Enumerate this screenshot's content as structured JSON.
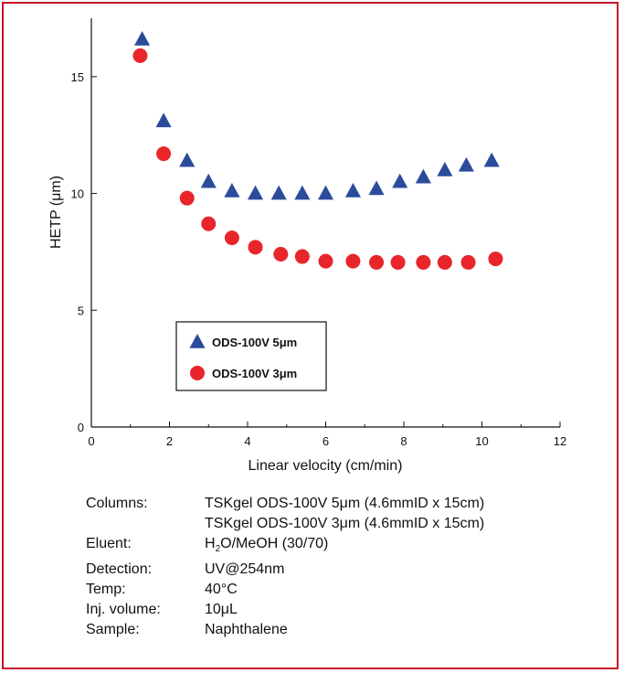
{
  "chart_data": {
    "type": "scatter",
    "xlabel": "Linear velocity (cm/min)",
    "ylabel": "HETP (μm)",
    "xlim": [
      0,
      12
    ],
    "ylim": [
      0,
      17.5
    ],
    "x_ticks": [
      0,
      2,
      4,
      6,
      8,
      10,
      12
    ],
    "y_ticks": [
      0,
      5,
      10,
      15
    ],
    "grid": false,
    "legend_position": "bottom-left",
    "series": [
      {
        "name": "ODS-100V 5μm",
        "marker": "triangle",
        "color": "#2b4c9b",
        "x": [
          1.3,
          1.85,
          2.45,
          3.0,
          3.6,
          4.2,
          4.8,
          5.4,
          6.0,
          6.7,
          7.3,
          7.9,
          8.5,
          9.05,
          9.6,
          10.25
        ],
        "y": [
          16.6,
          13.1,
          11.4,
          10.5,
          10.1,
          10.0,
          10.0,
          10.0,
          10.0,
          10.1,
          10.2,
          10.5,
          10.7,
          11.0,
          11.2,
          11.4
        ]
      },
      {
        "name": "ODS-100V 3μm",
        "marker": "circle",
        "color": "#e8252b",
        "x": [
          1.25,
          1.85,
          2.45,
          3.0,
          3.6,
          4.2,
          4.85,
          5.4,
          6.0,
          6.7,
          7.3,
          7.85,
          8.5,
          9.05,
          9.65,
          10.35
        ],
        "y": [
          15.9,
          11.7,
          9.8,
          8.7,
          8.1,
          7.7,
          7.4,
          7.3,
          7.1,
          7.1,
          7.05,
          7.05,
          7.05,
          7.05,
          7.05,
          7.2
        ]
      }
    ]
  },
  "conditions": {
    "columns_label": "Columns:",
    "columns_value_1": "TSKgel ODS-100V 5μm (4.6mmID x 15cm)",
    "columns_value_2": "TSKgel ODS-100V 3μm (4.6mmID x 15cm)",
    "eluent_label": "Eluent:",
    "eluent_h": "H",
    "eluent_sub": "2",
    "eluent_rest": "O/MeOH (30/70)",
    "detection_label": "Detection:",
    "detection_value": "UV@254nm",
    "temp_label": "Temp:",
    "temp_value": "40°C",
    "inj_label": "Inj. volume:",
    "inj_value": "10μL",
    "sample_label": "Sample:",
    "sample_value": "Naphthalene"
  }
}
